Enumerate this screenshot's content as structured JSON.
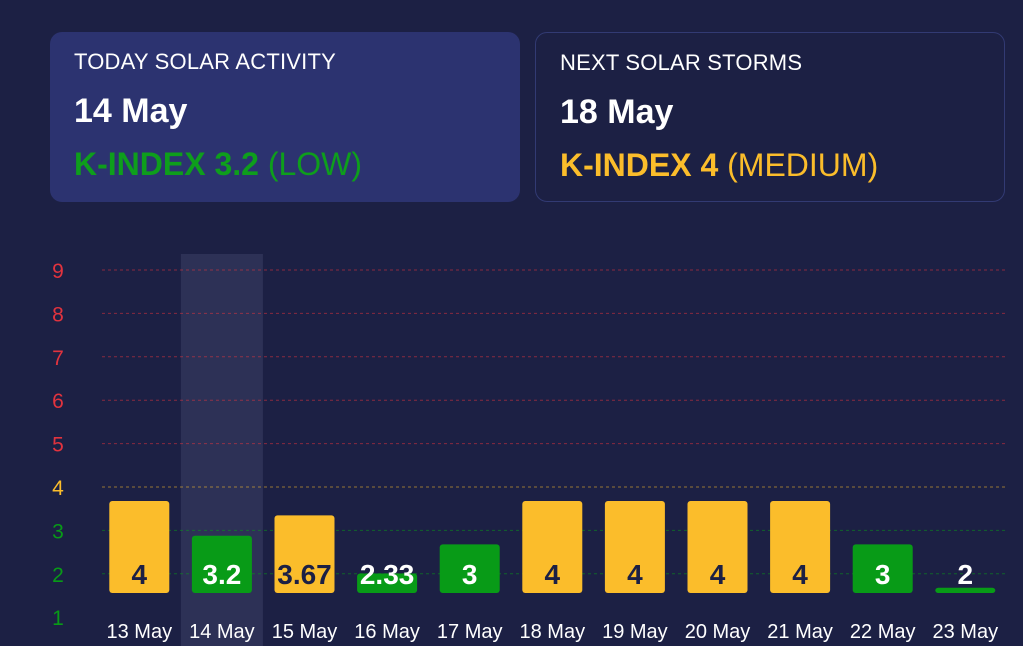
{
  "today": {
    "label": "TODAY SOLAR ACTIVITY",
    "date": "14 May",
    "kindex_text": "K-INDEX 3.2",
    "level_text": "(LOW)",
    "color": "#0e9e1c"
  },
  "next": {
    "label": "NEXT SOLAR STORMS",
    "date": "18 May",
    "kindex_text": "K-INDEX 4",
    "level_text": "(MEDIUM)",
    "color": "#fbbd2b"
  },
  "colors": {
    "low": "#089b17",
    "medium": "#fbbd2b",
    "high": "#e2333e",
    "background": "#1c2044",
    "highlight": "#2d3156"
  },
  "chart_data": {
    "type": "bar",
    "categories": [
      "13 May",
      "14 May",
      "15 May",
      "16 May",
      "17 May",
      "18 May",
      "19 May",
      "20 May",
      "21 May",
      "22 May",
      "23 May"
    ],
    "values": [
      4,
      3.2,
      3.67,
      2.33,
      3,
      4,
      4,
      4,
      4,
      3,
      2
    ],
    "value_labels": [
      "4",
      "3.2",
      "3.67",
      "2.33",
      "3",
      "4",
      "4",
      "4",
      "4",
      "3",
      "2"
    ],
    "bar_levels": [
      "medium",
      "low",
      "medium",
      "low",
      "low",
      "medium",
      "medium",
      "medium",
      "medium",
      "low",
      "low"
    ],
    "y_ticks": [
      "1",
      "2",
      "3",
      "4",
      "5",
      "6",
      "7",
      "8",
      "9"
    ],
    "ylim": [
      1,
      9
    ],
    "highlighted_category": "14 May",
    "grid": true,
    "title": "",
    "xlabel": "",
    "ylabel": ""
  }
}
